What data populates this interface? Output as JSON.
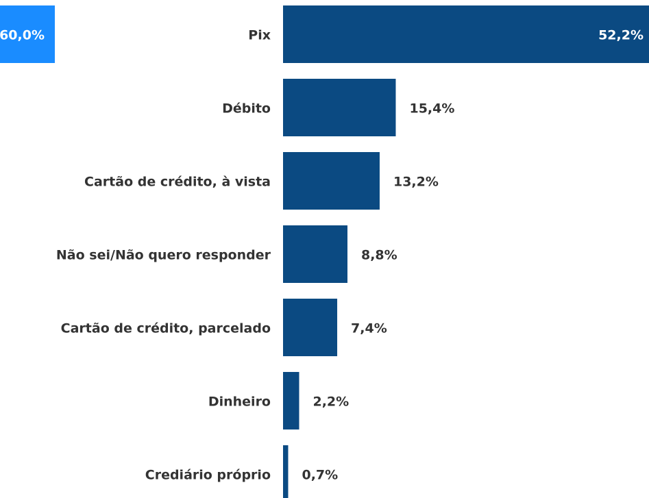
{
  "chart_data": {
    "type": "bar",
    "orientation": "horizontal",
    "categories": [
      "Pix",
      "Débito",
      "Cartão de crédito, à vista",
      "Não sei/Não quero responder",
      "Cartão de crédito, parcelado",
      "Dinheiro",
      "Crediário próprio"
    ],
    "values": [
      52.2,
      15.4,
      13.2,
      8.8,
      7.4,
      2.2,
      0.7
    ],
    "value_labels": [
      "52,2%",
      "15,4%",
      "13,2%",
      "8,8%",
      "7,4%",
      "2,2%",
      "0,7%"
    ],
    "color": "#0b4a82",
    "xlim": [
      0,
      50
    ],
    "annotations": [
      {
        "text": "60,0%",
        "color": "#1a8cff"
      }
    ]
  }
}
